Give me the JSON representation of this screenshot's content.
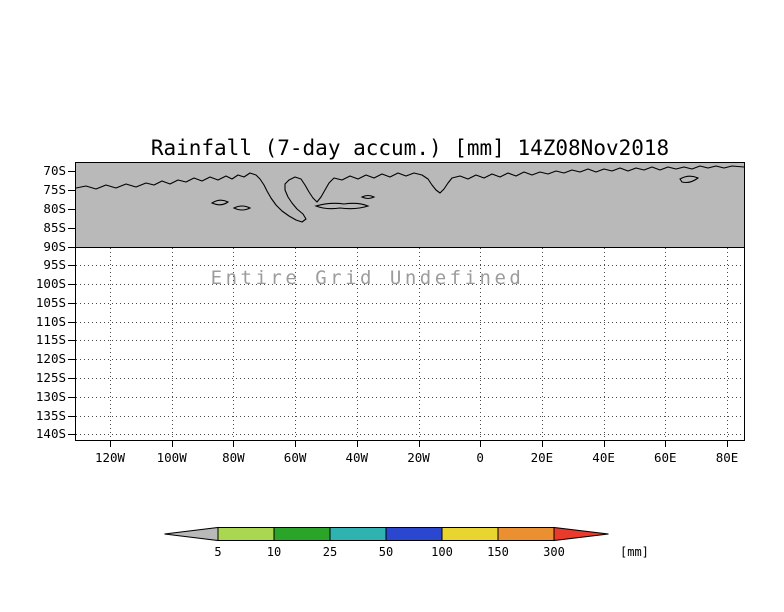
{
  "chart_data": {
    "type": "map-contour",
    "title": "Rainfall (7-day accum.) [mm] 14Z08Nov2018",
    "undefined_message": "Entire Grid Undefined",
    "grid": "dotted",
    "y_ticks": [
      "70S",
      "75S",
      "80S",
      "85S",
      "90S",
      "95S",
      "100S",
      "105S",
      "110S",
      "115S",
      "120S",
      "125S",
      "130S",
      "135S",
      "140S"
    ],
    "x_ticks": [
      "120W",
      "100W",
      "80W",
      "60W",
      "40W",
      "20W",
      "0",
      "20E",
      "40E",
      "60E",
      "80E"
    ],
    "shaded_region": {
      "from": "70S",
      "to": "90S",
      "color": "#b9b9b9",
      "content": "coastline-contours"
    },
    "colorbar": {
      "levels": [
        "5",
        "10",
        "25",
        "50",
        "100",
        "150",
        "300"
      ],
      "unit_label": "[mm]",
      "below_color": "#b9b9b9",
      "segment_colors": [
        "#a9d750",
        "#2aa52a",
        "#2fb3b0",
        "#2b46cf",
        "#e9d52f",
        "#ea9030"
      ],
      "above_color": "#e93a2c"
    }
  }
}
